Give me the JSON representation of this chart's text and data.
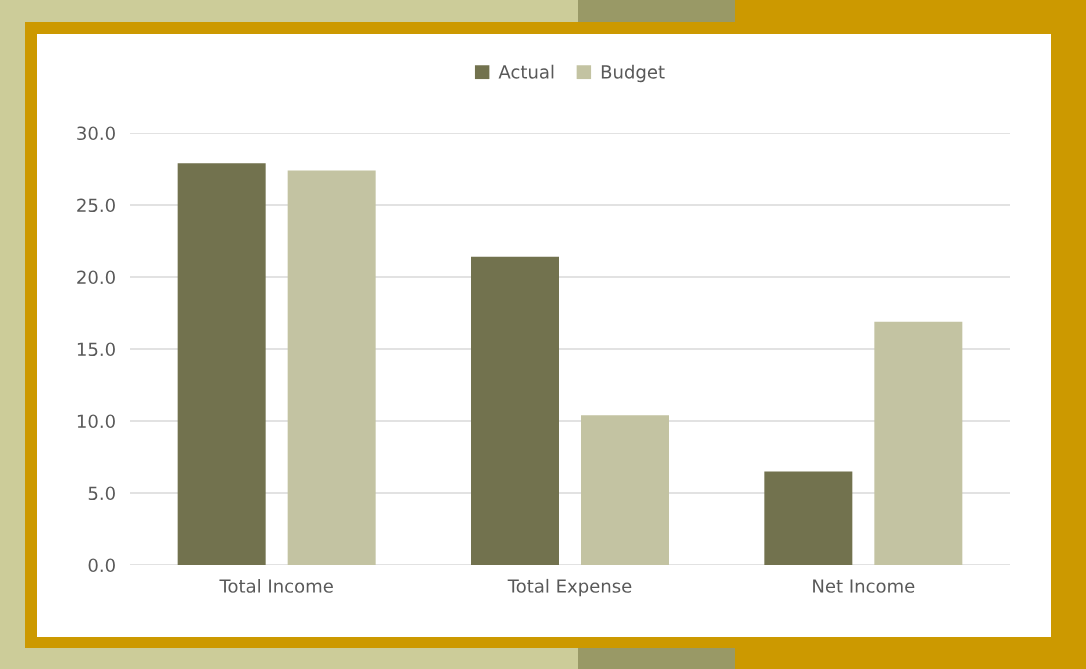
{
  "chart_data": {
    "type": "bar",
    "categories": [
      "Total Income",
      "Total Expense",
      "Net Income"
    ],
    "series": [
      {
        "name": "Actual",
        "color": "#72724e",
        "values": [
          27.9,
          21.4,
          6.5
        ]
      },
      {
        "name": "Budget",
        "color": "#c3c3a2",
        "values": [
          27.4,
          10.4,
          16.9
        ]
      }
    ],
    "ylim": [
      0,
      30
    ],
    "yticks": [
      {
        "value": 0,
        "label": "0.0"
      },
      {
        "value": 5,
        "label": "5.0"
      },
      {
        "value": 10,
        "label": "10.0"
      },
      {
        "value": 15,
        "label": "15.0"
      },
      {
        "value": 20,
        "label": "20.0"
      },
      {
        "value": 25,
        "label": "25.0"
      },
      {
        "value": 30,
        "label": "30.0"
      }
    ],
    "grid": "y",
    "legend": "top"
  }
}
